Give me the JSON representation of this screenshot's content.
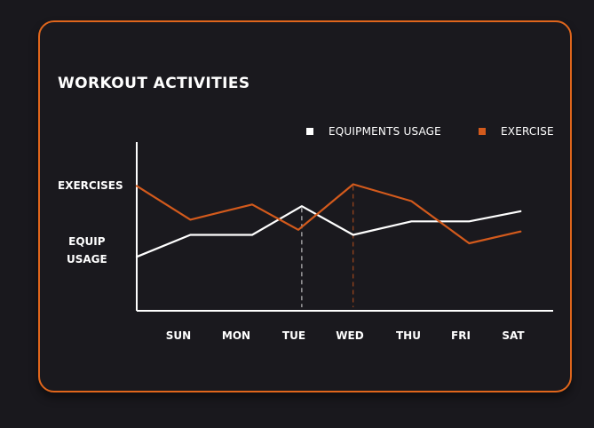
{
  "title": "WORKOUT ACTIVITIES",
  "colors": {
    "background": "#19181d",
    "card_border": "#e0661c",
    "equip": "#ffffff",
    "exercise": "#d35a1c"
  },
  "chart_data": {
    "type": "line",
    "title": "WORKOUT ACTIVITIES",
    "categories": [
      "SUN",
      "MON",
      "TUE",
      "WED",
      "THU",
      "FRI",
      "SAT"
    ],
    "x_extra_points": "mid-week points between labels",
    "y_axis_labels": [
      "EXERCISES",
      "EQUIP USAGE"
    ],
    "legend_placement": "top-right",
    "grid": false,
    "ylim": [
      0,
      100
    ],
    "series": [
      {
        "name": "EQUIPMENTS USAGE",
        "color": "#ffffff",
        "x": [
          0,
          0.93,
          2.0,
          2.86,
          3.75,
          4.76,
          5.76,
          6.65
        ],
        "values": [
          32,
          45,
          45,
          62,
          45,
          53,
          53,
          59
        ]
      },
      {
        "name": "EXERCISE",
        "color": "#d35a1c",
        "x": [
          0,
          0.93,
          2.0,
          2.8,
          3.75,
          4.76,
          5.76,
          6.65
        ],
        "values": [
          74,
          54,
          63,
          48,
          75,
          65,
          40,
          47
        ]
      }
    ],
    "markers": [
      {
        "x": 2.86,
        "series": "EQUIPMENTS USAGE",
        "style": "dashed"
      },
      {
        "x": 3.75,
        "series": "EXERCISE",
        "style": "dashed"
      }
    ]
  },
  "legend": {
    "equip_label": "EQUIPMENTS USAGE",
    "exercise_label": "EXERCISE"
  },
  "y_labels": {
    "exercises": "EXERCISES",
    "equip_line1": "EQUIP",
    "equip_line2": "USAGE"
  }
}
